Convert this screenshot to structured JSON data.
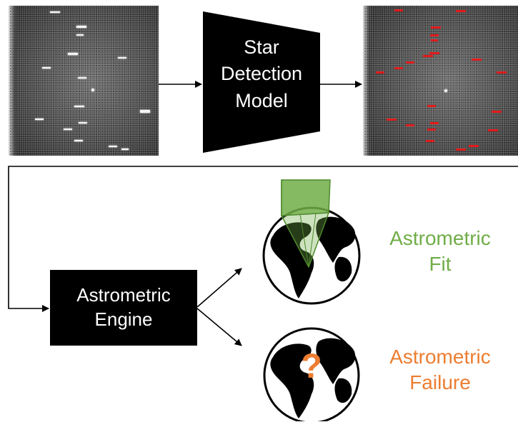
{
  "detection_model": {
    "line1": "Star",
    "line2": "Detection",
    "line3": "Model"
  },
  "astrometric_engine": {
    "line1": "Astrometric",
    "line2": "Engine"
  },
  "fit_result": {
    "line1": "Astrometric",
    "line2": "Fit",
    "color": "#70ad47"
  },
  "failure_result": {
    "line1": "Astrometric",
    "line2": "Failure",
    "symbol": "?",
    "color": "#ed7d31"
  },
  "colors": {
    "detection_marker": "#e31a1a",
    "box": "#000000",
    "arrow": "#000000"
  },
  "icons": {
    "input_image": "raw-star-field-image",
    "output_image": "detected-star-field-image",
    "fit_globe": "globe-with-field-of-view-icon",
    "failure_globe": "globe-with-question-mark-icon"
  }
}
